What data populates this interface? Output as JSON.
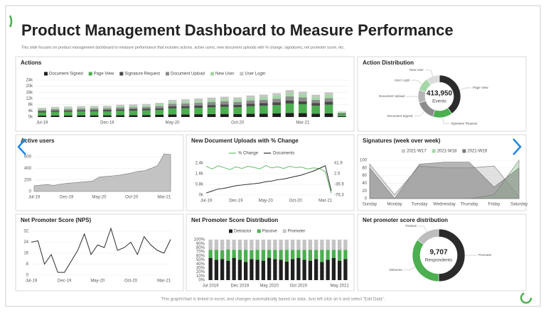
{
  "header": {
    "title": "Product Management Dashboard to Measure Performance",
    "subtitle": "This slide focuses on product management dashboard to measure performance that includes actions, active users, new document uploads with % change, signatures, net promoter score, etc."
  },
  "footer": "This graph/chart is linked to excel, and changes automatically based on data. Just left click on it and select \"Edit Data\".",
  "chart_data": [
    {
      "type": "bar",
      "stacked": true,
      "title": "Actions",
      "grid": true,
      "categories": [
        "Jul-19",
        null,
        null,
        null,
        null,
        "Dec-19",
        null,
        null,
        null,
        null,
        "May-20",
        null,
        null,
        null,
        null,
        "Oct-20",
        null,
        null,
        null,
        null,
        "Mar-21",
        null,
        null,
        null
      ],
      "ylim": [
        0,
        24000
      ],
      "yticks": [
        {
          "value": 0,
          "label": "0k"
        },
        {
          "value": 4000,
          "label": "4k"
        },
        {
          "value": 8000,
          "label": "8k"
        },
        {
          "value": 12000,
          "label": "12k"
        },
        {
          "value": 16000,
          "label": "16k"
        },
        {
          "value": 20000,
          "label": "20k"
        },
        {
          "value": 24000,
          "label": "24k"
        }
      ],
      "series": [
        {
          "name": "Document Signed",
          "color": "#1f1f1f",
          "values": [
            900,
            1000,
            1000,
            1100,
            1100,
            1100,
            1200,
            1200,
            1300,
            1400,
            1700,
            1700,
            1800,
            1900,
            2000,
            1900,
            2100,
            2200,
            2300,
            2600,
            2500,
            2200,
            2400,
            500
          ]
        },
        {
          "name": "Page View",
          "color": "#4caf50",
          "values": [
            2100,
            2300,
            2400,
            2500,
            2500,
            2600,
            2800,
            2900,
            3000,
            3200,
            3900,
            4000,
            4200,
            4400,
            4600,
            4500,
            4900,
            5100,
            5400,
            6100,
            5800,
            5100,
            5600,
            1200
          ]
        },
        {
          "name": "Signature Request",
          "color": "#4a4a4a",
          "values": [
            700,
            800,
            800,
            800,
            900,
            900,
            1000,
            1000,
            1000,
            1100,
            1300,
            1400,
            1400,
            1500,
            1600,
            1500,
            1700,
            1700,
            1900,
            2100,
            2000,
            1700,
            1900,
            400
          ]
        },
        {
          "name": "Document Upload",
          "color": "#8c8c8c",
          "values": [
            900,
            1000,
            1000,
            1100,
            1100,
            1100,
            1200,
            1200,
            1300,
            1400,
            1700,
            1700,
            1800,
            1900,
            2000,
            1900,
            2100,
            2200,
            2300,
            2600,
            2500,
            2200,
            2400,
            500
          ]
        },
        {
          "name": "New User",
          "color": "#a5d6a7",
          "values": [
            800,
            800,
            900,
            900,
            900,
            900,
            1000,
            1100,
            1100,
            1200,
            1400,
            1500,
            1600,
            1600,
            1700,
            1700,
            1800,
            1900,
            2000,
            2300,
            2100,
            1900,
            2100,
            500
          ]
        },
        {
          "name": "User Login",
          "color": "#c4c4c4",
          "values": [
            600,
            700,
            700,
            700,
            700,
            700,
            800,
            800,
            800,
            900,
            1100,
            1200,
            1200,
            1300,
            1300,
            1300,
            1400,
            1500,
            1600,
            1800,
            1600,
            1400,
            1600,
            400
          ]
        }
      ]
    },
    {
      "type": "doughnut",
      "title": "Action Distribution",
      "categories": [
        "Page View",
        "Signature Request",
        "Document Signed",
        "Document Upload",
        "User Login",
        "New User"
      ],
      "values": [
        165580,
        62093,
        62093,
        41395,
        41395,
        41394
      ],
      "colors": [
        "#2b2b2b",
        "#4caf50",
        "#8c8c8c",
        "#b5b5b5",
        "#a5d6a7",
        "#dcdcdc"
      ],
      "total": {
        "value": 413950,
        "label": "413,950"
      },
      "center_text": "Events"
    },
    {
      "type": "area",
      "title": "Active users",
      "grid": true,
      "color": "#bdbdbd",
      "categories": [
        "Jul-19",
        null,
        null,
        null,
        null,
        "Dec-19",
        null,
        null,
        null,
        null,
        "May-20",
        null,
        null,
        null,
        null,
        "Oct-20",
        null,
        null,
        null,
        null,
        "Mar-21",
        null
      ],
      "values": [
        100,
        110,
        120,
        105,
        125,
        140,
        150,
        160,
        170,
        180,
        250,
        260,
        270,
        280,
        300,
        320,
        350,
        360,
        400,
        450,
        650,
        640
      ],
      "ylim": [
        0,
        700
      ],
      "yticks": [
        0,
        200,
        400,
        600
      ]
    },
    {
      "type": "line",
      "title": "New Document Uploads with % Change",
      "grid": true,
      "categories": [
        "Jul-19",
        null,
        null,
        null,
        null,
        "Dec-19",
        null,
        null,
        null,
        null,
        "May-20",
        null,
        null,
        null,
        null,
        "Oct-20",
        null,
        null,
        null,
        null,
        "Mar-21",
        null
      ],
      "ylim": [
        0,
        2400
      ],
      "yticks": [
        {
          "value": 0,
          "label": "0k"
        },
        {
          "value": 800,
          "label": "0.8k"
        },
        {
          "value": 1600,
          "label": "1.6k"
        },
        {
          "value": 2400,
          "label": "2.4k"
        }
      ],
      "y2lim": [
        -76.3,
        41.9
      ],
      "y2ticks": [
        -76.3,
        -36.9,
        2.5,
        41.9
      ],
      "series": [
        {
          "name": "% Change",
          "color": "#66bb6a",
          "axis": "y2",
          "values": [
            30,
            20,
            32,
            25,
            18,
            28,
            22,
            30,
            26,
            20,
            33,
            24,
            28,
            22,
            30,
            25,
            27,
            20,
            24,
            22,
            10,
            -70
          ]
        },
        {
          "name": "Documents",
          "color": "#2b2b2b",
          "values": [
            150,
            300,
            450,
            500,
            600,
            700,
            750,
            800,
            850,
            900,
            1000,
            1050,
            1150,
            1200,
            1300,
            1400,
            1500,
            1650,
            1800,
            2000,
            2200,
            300
          ]
        }
      ]
    },
    {
      "type": "area",
      "title": "Signatures (week over week)",
      "grid": true,
      "categories": [
        "Sunday",
        "Monday",
        "Tuesday",
        "Wednesday",
        "Thursday",
        "Friday",
        "Saturday"
      ],
      "ylim": [
        0,
        100
      ],
      "yticks": [
        0,
        20,
        40,
        60,
        80,
        100
      ],
      "series": [
        {
          "name": "2021-W17",
          "color": "#c8c8c8",
          "values": [
            90,
            10,
            85,
            80,
            80,
            85,
            5
          ]
        },
        {
          "name": "2021-W18",
          "color": "#a5d6a7",
          "values": [
            0,
            0,
            0,
            0,
            0,
            10,
            100
          ]
        },
        {
          "name": "2021-W19",
          "color": "#7a7a7a",
          "values": [
            80,
            0,
            90,
            95,
            95,
            30,
            80
          ]
        }
      ]
    },
    {
      "type": "line",
      "title": "Net Promoter Score (NPS)",
      "grid": true,
      "color": "#2b2b2b",
      "categories": [
        "Jul-19",
        null,
        null,
        null,
        null,
        "Dec-19",
        null,
        null,
        null,
        null,
        "May-20",
        null,
        null,
        null,
        null,
        "Oct-20",
        null,
        null,
        null,
        null,
        "Mar-21",
        null
      ],
      "values": [
        24,
        25,
        8,
        15,
        2,
        2,
        10,
        18,
        30,
        15,
        22,
        20,
        34,
        18,
        20,
        24,
        15,
        28,
        22,
        18,
        16,
        26
      ],
      "ylim": [
        0,
        32
      ],
      "yticks": [
        0,
        8,
        16,
        24,
        32
      ]
    },
    {
      "type": "bar",
      "stacked": true,
      "title": "Net Promoter Score Distribution",
      "grid": true,
      "categories": [
        "Jul 2019",
        null,
        null,
        null,
        null,
        "Dec 2019",
        null,
        null,
        null,
        null,
        "May 2020",
        null,
        null,
        null,
        null,
        "Oct 2020",
        null,
        null,
        null,
        null,
        null,
        null,
        "May 2021",
        null
      ],
      "ylim": [
        0,
        100
      ],
      "yticks": [
        {
          "value": 0,
          "label": "0%"
        },
        {
          "value": 10,
          "label": "10%"
        },
        {
          "value": 20,
          "label": "20%"
        },
        {
          "value": 30,
          "label": "30%"
        },
        {
          "value": 40,
          "label": "40%"
        },
        {
          "value": 50,
          "label": "50%"
        },
        {
          "value": 60,
          "label": "60%"
        },
        {
          "value": 70,
          "label": "70%"
        },
        {
          "value": 80,
          "label": "80%"
        },
        {
          "value": 90,
          "label": "90%"
        },
        {
          "value": 100,
          "label": "100%"
        }
      ],
      "series": [
        {
          "name": "Detractor",
          "color": "#1f1f1f",
          "values": [
            55,
            50,
            52,
            48,
            55,
            50,
            45,
            52,
            50,
            48,
            55,
            52,
            50,
            46,
            52,
            55,
            50,
            48,
            52,
            45,
            50,
            55,
            48,
            52
          ]
        },
        {
          "name": "Passive",
          "color": "#4caf50",
          "values": [
            20,
            25,
            22,
            28,
            20,
            25,
            30,
            22,
            25,
            27,
            20,
            23,
            25,
            29,
            23,
            20,
            25,
            27,
            23,
            30,
            25,
            20,
            27,
            23
          ]
        },
        {
          "name": "Promoter",
          "color": "#c4c4c4",
          "values": [
            25,
            25,
            26,
            24,
            25,
            25,
            25,
            26,
            25,
            25,
            25,
            25,
            25,
            25,
            25,
            25,
            25,
            25,
            25,
            25,
            25,
            25,
            25,
            25
          ]
        }
      ]
    },
    {
      "type": "doughnut",
      "title": "Net promoter score distribution",
      "categories": [
        "Promoter",
        "Detractor",
        "Passive"
      ],
      "values": [
        4854,
        3397,
        1456
      ],
      "colors": [
        "#2b2b2b",
        "#4caf50",
        "#bdbdbd"
      ],
      "total": {
        "value": 9707,
        "label": "9,707"
      },
      "center_text": "Respondents"
    }
  ]
}
